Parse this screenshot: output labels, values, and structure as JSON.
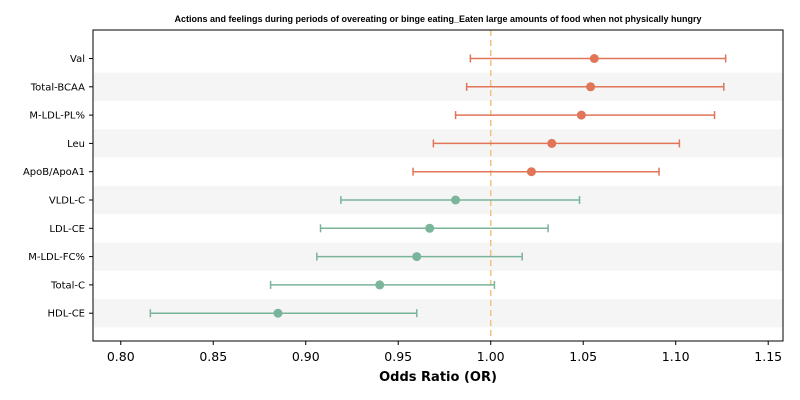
{
  "chart_data": {
    "type": "forest",
    "title": "Actions and feelings during periods of overeating or binge eating_Eaten large amounts of food when not physically hungry",
    "xlabel": "Odds Ratio (OR)",
    "ylabel": "",
    "xlim": [
      0.785,
      1.158
    ],
    "x_ticks": [
      "0.80",
      "0.85",
      "0.90",
      "0.95",
      "1.00",
      "1.05",
      "1.10",
      "1.15"
    ],
    "reference_line": 1.0,
    "reference_color": "#f2c27a",
    "colors": {
      "positive": "#e07558",
      "negative": "#7ab49a"
    },
    "grid": false,
    "row_shading": true,
    "rows": [
      {
        "label": "Val",
        "or": 1.056,
        "lower": 0.989,
        "upper": 1.127
      },
      {
        "label": "Total-BCAA",
        "or": 1.054,
        "lower": 0.987,
        "upper": 1.126
      },
      {
        "label": "M-LDL-PL%",
        "or": 1.049,
        "lower": 0.981,
        "upper": 1.121
      },
      {
        "label": "Leu",
        "or": 1.033,
        "lower": 0.969,
        "upper": 1.102
      },
      {
        "label": "ApoB/ApoA1",
        "or": 1.022,
        "lower": 0.958,
        "upper": 1.091
      },
      {
        "label": "VLDL-C",
        "or": 0.981,
        "lower": 0.919,
        "upper": 1.048
      },
      {
        "label": "LDL-CE",
        "or": 0.967,
        "lower": 0.908,
        "upper": 1.031
      },
      {
        "label": "M-LDL-FC%",
        "or": 0.96,
        "lower": 0.906,
        "upper": 1.017
      },
      {
        "label": "Total-C",
        "or": 0.94,
        "lower": 0.881,
        "upper": 1.002
      },
      {
        "label": "HDL-CE",
        "or": 0.885,
        "lower": 0.816,
        "upper": 0.96
      }
    ]
  }
}
